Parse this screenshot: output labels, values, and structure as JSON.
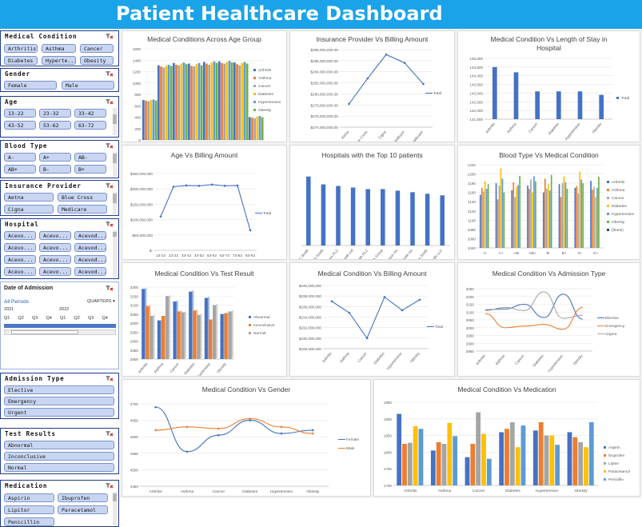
{
  "title": "Patient Healthcare Dashboard",
  "colors": {
    "accent": "#1aa3e8",
    "series": [
      "#4472c4",
      "#ed7d31",
      "#a5a5a5",
      "#ffc000",
      "#5b9bd5",
      "#70ad47",
      "#264478"
    ]
  },
  "slicers": {
    "medical_condition": {
      "title": "Medical Condition",
      "items": [
        "Arthritis",
        "Asthma",
        "Cancer",
        "Diabetes",
        "Hyperte...",
        "Obesity"
      ]
    },
    "gender": {
      "title": "Gender",
      "items": [
        "Female",
        "Male"
      ]
    },
    "age": {
      "title": "Age",
      "items": [
        "13-22",
        "23-32",
        "33-42",
        "43-52",
        "53-62",
        "63-72",
        "73-82",
        "83-92"
      ]
    },
    "blood_type": {
      "title": "Blood Type",
      "items": [
        "A-",
        "A+",
        "AB-",
        "AB+",
        "B-",
        "B+"
      ]
    },
    "insurance": {
      "title": "Insurance Provider",
      "items": [
        "Aetna",
        "Blue Cross",
        "Cigna",
        "Medicare"
      ]
    },
    "hospital": {
      "title": "Hospital",
      "items": [
        "Acevo...",
        "Acevo...",
        "Acevod...",
        "Acevo...",
        "Acevo...",
        "Acevod...",
        "Acevo...",
        "Acevo...",
        "Acevod..."
      ]
    },
    "date": {
      "title": "Date of Admission",
      "period": "All Periods",
      "granularity": "QUARTERS",
      "years": [
        "2021",
        "2022"
      ],
      "quarters": [
        "Q1",
        "Q2",
        "Q3",
        "Q4",
        "Q1",
        "Q2",
        "Q3",
        "Q4"
      ]
    },
    "admission": {
      "title": "Admission Type",
      "items": [
        "Elective",
        "Emergency",
        "Urgent"
      ]
    },
    "test_results": {
      "title": "Test Results",
      "items": [
        "Abnormal",
        "Inconclusive",
        "Normal"
      ]
    },
    "medication": {
      "title": "Medication",
      "items": [
        "Aspirin",
        "Ibuprofen",
        "Lipitor",
        "Paracetamol",
        "Penicillin"
      ]
    }
  },
  "charts": {
    "age_conditions": {
      "title": "Medical Conditions Across Age Group",
      "chart_data": {
        "type": "bar",
        "categories": [
          "13-22",
          "23-32",
          "33-42",
          "43-52",
          "53-62",
          "63-72",
          "73-82",
          "83-92"
        ],
        "series": [
          {
            "name": "Arthritis",
            "values": [
              700,
              1310,
              1350,
              1340,
              1370,
              1380,
              1360,
              400
            ]
          },
          {
            "name": "Asthma",
            "values": [
              690,
              1290,
              1320,
              1300,
              1340,
              1350,
              1330,
              390
            ]
          },
          {
            "name": "Cancer",
            "values": [
              680,
              1270,
              1310,
              1290,
              1320,
              1340,
              1310,
              380
            ]
          },
          {
            "name": "Diabetes",
            "values": [
              700,
              1300,
              1340,
              1330,
              1360,
              1370,
              1350,
              410
            ]
          },
          {
            "name": "Hypertension",
            "values": [
              710,
              1320,
              1360,
              1350,
              1380,
              1390,
              1370,
              420
            ]
          },
          {
            "name": "Obesity",
            "values": [
              690,
              1300,
              1330,
              1310,
              1350,
              1360,
              1340,
              395
            ]
          }
        ],
        "ylim": [
          0,
          1600
        ],
        "yticks": [
          "0",
          "200",
          "400",
          "600",
          "800",
          "1000",
          "1200",
          "1400",
          "1600"
        ]
      }
    },
    "insurance_billing": {
      "title": "Insurance Provider Vs Billing Amount",
      "chart_data": {
        "type": "line",
        "categories": [
          "Aetna",
          "Blue Cross",
          "Cigna",
          "Medicare",
          "UnitedHealthcare"
        ],
        "series": [
          {
            "name": "Total",
            "values": [
              278200000,
              282800000,
              287100000,
              285600000,
              281800000
            ]
          }
        ],
        "ylim": [
          274000000,
          288000000
        ],
        "yticks": [
          "$274,000,000.00",
          "$276,000,000.00",
          "$278,000,000.00",
          "$280,000,000.00",
          "$282,000,000.00",
          "$284,000,000.00",
          "$286,000,000.00",
          "$288,000,000.00"
        ]
      }
    },
    "condition_stay": {
      "title": "Medical Condition Vs Length of Stay in Hospital",
      "chart_data": {
        "type": "bar",
        "categories": [
          "Arthritis",
          "Asthma",
          "Cancer",
          "Diabetes",
          "Hypertension",
          "Obesity"
        ],
        "series": [
          {
            "name": "Total",
            "values": [
              144500,
              144200,
              143100,
              143100,
              143100,
              142900
            ]
          }
        ],
        "ylim": [
          141500,
          145000
        ],
        "yticks": [
          "141,500",
          "142,000",
          "142,500",
          "143,000",
          "143,500",
          "144,000",
          "144,500",
          "145,000"
        ]
      }
    },
    "age_billing": {
      "title": "Age Vs Billing Amount",
      "chart_data": {
        "type": "line",
        "categories": [
          "13-22",
          "23-32",
          "33-42",
          "43-52",
          "53-62",
          "63-72",
          "73-82",
          "83-92"
        ],
        "series": [
          {
            "name": "Total",
            "values": [
              110000000,
              207000000,
              211000000,
              210000000,
              214000000,
              210000000,
              211000000,
              65000000
            ]
          }
        ],
        "ylim": [
          0,
          250000000
        ],
        "yticks": [
          "$-",
          "$50,000,000",
          "$100,000,000",
          "$150,000,000",
          "$200,000,000",
          "$250,000,000"
        ]
      }
    },
    "top_hospitals": {
      "title": "Hospitals with the Top 10 patients",
      "chart_data": {
        "type": "bar",
        "categories": [
          "LLC Smith",
          "Ltd Smith",
          "Johnson PLC",
          "Smith Ltd",
          "Smith PLC",
          "Smith Group",
          "Johnson Inc",
          "Smith Inc",
          "Group Smith",
          "Smith LLC"
        ],
        "series": [
          {
            "name": "Total",
            "values": [
              44,
              39,
              38,
              37,
              36,
              36,
              35,
              34,
              33,
              32
            ]
          }
        ],
        "ylim": [
          0,
          50
        ]
      }
    },
    "blood_condition": {
      "title": "Blood Type Vs Medical Condition",
      "chart_data": {
        "type": "bar",
        "categories": [
          "A-",
          "A+",
          "AB-",
          "AB+",
          "B-",
          "B+",
          "O-",
          "O+"
        ],
        "series": [
          {
            "name": "Arthritis",
            "values": [
              1155,
              1180,
              1165,
              1175,
              1160,
              1178,
              1170,
              1185
            ]
          },
          {
            "name": "Asthma",
            "values": [
              1170,
              1145,
              1182,
              1168,
              1190,
              1150,
              1174,
              1166
            ]
          },
          {
            "name": "Cancer",
            "values": [
              1162,
              1175,
              1150,
              1188,
              1168,
              1180,
              1158,
              1172
            ]
          },
          {
            "name": "Diabetes",
            "values": [
              1185,
              1212,
              1172,
              1160,
              1178,
              1195,
              1205,
              1150
            ]
          },
          {
            "name": "Hypertension",
            "values": [
              1168,
              1190,
              1176,
              1195,
              1164,
              1182,
              1188,
              1170
            ]
          },
          {
            "name": "Obesity",
            "values": [
              1178,
              1160,
              1196,
              1184,
              1198,
              1168,
              1180,
              1194
            ]
          },
          {
            "name": "(blank)",
            "values": [
              0,
              0,
              0,
              0,
              0,
              0,
              0,
              0
            ]
          }
        ],
        "ylim": [
          1040,
          1220
        ],
        "yticks": [
          "1040",
          "1060",
          "1080",
          "1100",
          "1120",
          "1140",
          "1160",
          "1180",
          "1200",
          "1220"
        ]
      }
    },
    "condition_test": {
      "title": "Medical Condition Vs Test Result",
      "chart_data": {
        "type": "bar",
        "categories": [
          "Arthritis",
          "Asthma",
          "Cancer",
          "Diabetes",
          "Hypertension",
          "Obesity"
        ],
        "series": [
          {
            "name": "Abnormal",
            "values": [
              3190,
              3015,
              3120,
              3175,
              3140,
              3050
            ]
          },
          {
            "name": "Inconclusive",
            "values": [
              3095,
              3040,
              3065,
              3070,
              3020,
              3055
            ]
          },
          {
            "name": "Normal",
            "values": [
              3040,
              3150,
              3060,
              3045,
              3100,
              3065
            ]
          }
        ],
        "ylim": [
          2800,
          3200
        ],
        "yticks": [
          "2800",
          "2850",
          "2900",
          "2950",
          "3000",
          "3050",
          "3100",
          "3150",
          "3200"
        ]
      }
    },
    "condition_billing": {
      "title": "Medical Condition Vs Billing Amount",
      "chart_data": {
        "type": "line",
        "categories": [
          "Arthritis",
          "Asthma",
          "Cancer",
          "Diabetes",
          "Hypertension",
          "Obesity"
        ],
        "series": [
          {
            "name": "Total",
            "values": [
              237000000,
              234800000,
              230000000,
              237800000,
              235300000,
              237300000
            ]
          }
        ],
        "ylim": [
          228000000,
          240000000
        ],
        "yticks": [
          "$228,000,000",
          "$230,000,000",
          "$232,000,000",
          "$234,000,000",
          "$236,000,000",
          "$238,000,000",
          "$240,000,000"
        ]
      }
    },
    "condition_admission": {
      "title": "Medical Condition Vs Admission Type",
      "chart_data": {
        "type": "line",
        "categories": [
          "Arthritis",
          "Asthma",
          "Cancer",
          "Diabetes",
          "Hypertension",
          "Obesity"
        ],
        "series": [
          {
            "name": "Elective",
            "values": [
              3115,
              3120,
              3150,
              3065,
              3215,
              3055
            ]
          },
          {
            "name": "Emergency",
            "values": [
              3090,
              3000,
              3010,
              3020,
              2990,
              3130
            ]
          },
          {
            "name": "Urgent",
            "values": [
              3110,
              3130,
              3110,
              3230,
              3060,
              3080
            ]
          }
        ],
        "ylim": [
          2850,
          3250
        ],
        "yticks": [
          "2850",
          "2900",
          "2950",
          "3000",
          "3050",
          "3100",
          "3150",
          "3200",
          "3250"
        ]
      }
    },
    "condition_gender": {
      "title": "Medical Condition Vs Gender",
      "chart_data": {
        "type": "line",
        "categories": [
          "Arthritis",
          "Asthma",
          "Cancer",
          "Diabetes",
          "Hypertension",
          "Obesity"
        ],
        "series": [
          {
            "name": "Female",
            "values": [
              4690,
              4555,
              4605,
              4650,
              4610,
              4620
            ]
          },
          {
            "name": "Male",
            "values": [
              4620,
              4630,
              4625,
              4655,
              4630,
              4610
            ]
          }
        ],
        "ylim": [
          4450,
          4700
        ],
        "yticks": [
          "4450",
          "4500",
          "4550",
          "4600",
          "4650",
          "4700"
        ]
      }
    },
    "condition_medication": {
      "title": "Medical Condition Vs Medication",
      "chart_data": {
        "type": "bar",
        "categories": [
          "Arthritis",
          "Asthma",
          "Cancer",
          "Diabetes",
          "Hypertension",
          "Obesity"
        ],
        "series": [
          {
            "name": "Aspirin",
            "values": [
              1915,
              1805,
              1785,
              1860,
              1865,
              1860
            ]
          },
          {
            "name": "Ibuprofen",
            "values": [
              1825,
              1830,
              1825,
              1870,
              1890,
              1845
            ]
          },
          {
            "name": "Lipitor",
            "values": [
              1828,
              1825,
              1920,
              1890,
              1850,
              1830
            ]
          },
          {
            "name": "Paracetamol",
            "values": [
              1878,
              1888,
              1855,
              1815,
              1850,
              1815
            ]
          },
          {
            "name": "Penicillin",
            "values": [
              1870,
              1848,
              1780,
              1880,
              1822,
              1890
            ]
          }
        ],
        "ylim": [
          1700,
          1950
        ],
        "yticks": [
          "1700",
          "1750",
          "1800",
          "1850",
          "1900",
          "1950"
        ]
      }
    }
  }
}
